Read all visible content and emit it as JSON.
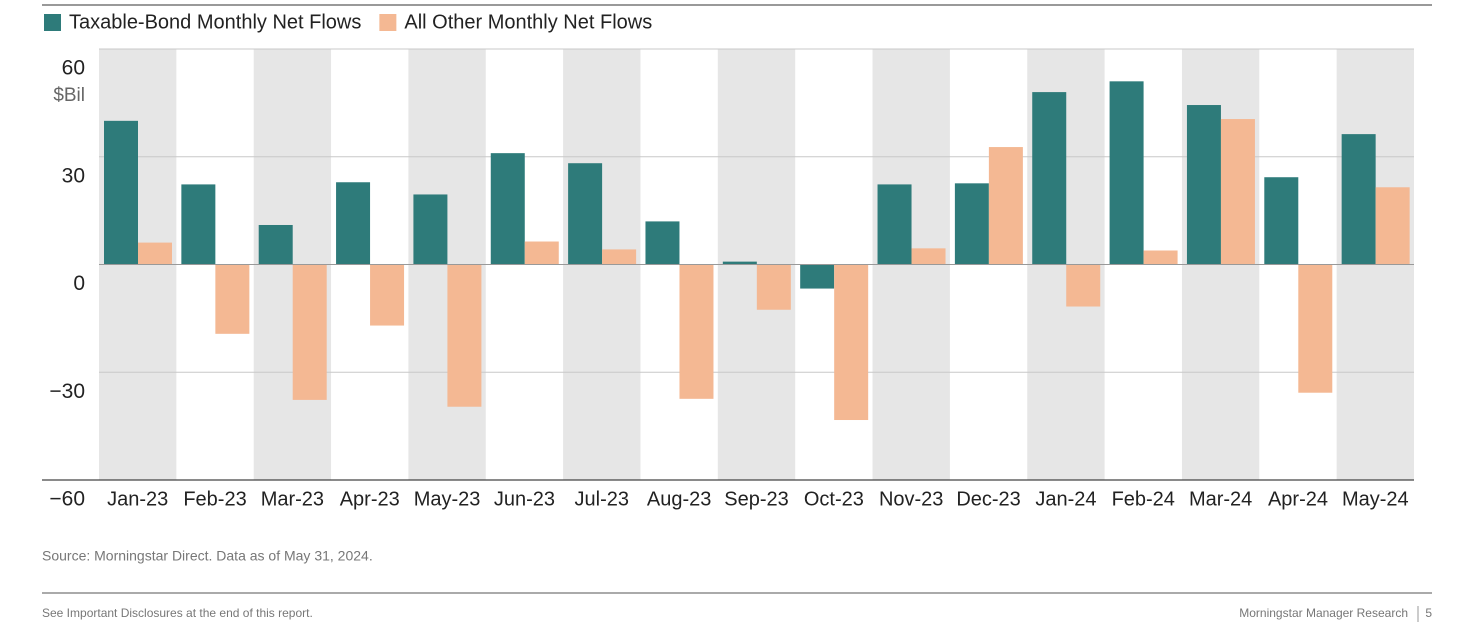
{
  "chart_data": {
    "type": "bar",
    "categories": [
      "Jan-23",
      "Feb-23",
      "Mar-23",
      "Apr-23",
      "May-23",
      "Jun-23",
      "Jul-23",
      "Aug-23",
      "Sep-23",
      "Oct-23",
      "Nov-23",
      "Dec-23",
      "Jan-24",
      "Feb-24",
      "Mar-24",
      "Apr-24",
      "May-24"
    ],
    "series": [
      {
        "name": "Taxable-Bond Monthly Net Flows",
        "color": "#2e7b7a",
        "values": [
          40,
          22.3,
          11,
          22.9,
          19.5,
          31,
          28.2,
          12,
          0.8,
          -6.7,
          22.3,
          22.6,
          48,
          51,
          44.4,
          24.3,
          36.3
        ]
      },
      {
        "name": "All Other Monthly Net Flows",
        "color": "#f4b893",
        "values": [
          6.1,
          -19.3,
          -37.7,
          -17,
          -39.6,
          6.4,
          4.2,
          -37.4,
          -12.6,
          -43.3,
          4.5,
          32.7,
          -11.7,
          3.9,
          40.5,
          -35.7,
          21.5
        ]
      }
    ],
    "y_unit": "$Bil",
    "ylim": [
      -60,
      60
    ],
    "yticks": [
      {
        "value": -60,
        "label": "−60"
      },
      {
        "value": -30,
        "label": "−30"
      },
      0,
      30,
      60
    ],
    "grid": true,
    "band_color": "#e6e6e6",
    "source": "Source: Morningstar Direct. Data as of May 31, 2024."
  },
  "footer": {
    "left": "See Important Disclosures at the end of this report.",
    "right": "Morningstar Manager Research",
    "page": "5"
  }
}
